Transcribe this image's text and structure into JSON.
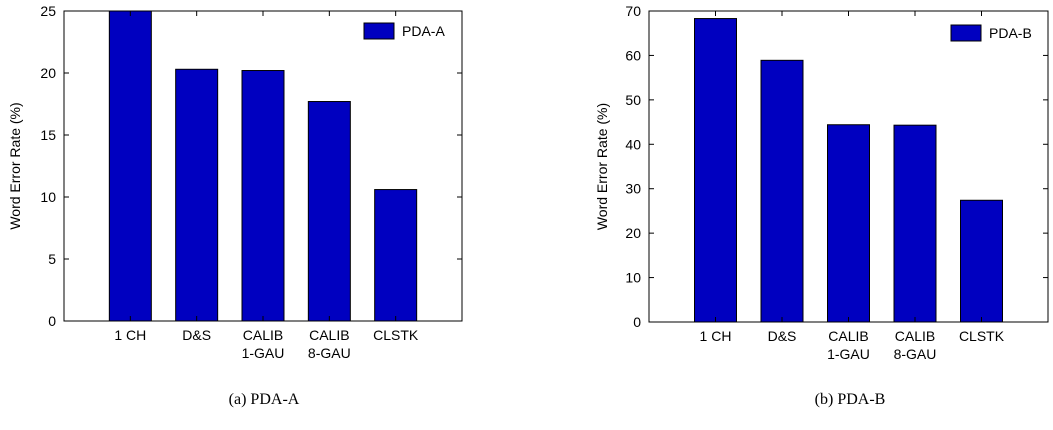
{
  "chart_data": [
    {
      "type": "bar",
      "categories": [
        [
          "1 CH"
        ],
        [
          "D&S"
        ],
        [
          "CALIB",
          "1-GAU"
        ],
        [
          "CALIB",
          "8-GAU"
        ],
        [
          "CLSTK"
        ]
      ],
      "series": [
        {
          "name": "PDA-A",
          "values": [
            25.0,
            20.3,
            20.2,
            17.7,
            10.6
          ]
        }
      ],
      "ylabel": "Word Error Rate (%)",
      "ylim": [
        0,
        25
      ],
      "yticks": [
        0,
        5,
        10,
        15,
        20,
        25
      ],
      "caption": "(a)  PDA-A",
      "legend_position": "top-right",
      "colors": {
        "bar": "#0000c0"
      }
    },
    {
      "type": "bar",
      "categories": [
        [
          "1 CH"
        ],
        [
          "D&S"
        ],
        [
          "CALIB",
          "1-GAU"
        ],
        [
          "CALIB",
          "8-GAU"
        ],
        [
          "CLSTK"
        ]
      ],
      "series": [
        {
          "name": "PDA-B",
          "values": [
            68.3,
            58.9,
            44.4,
            44.3,
            27.4
          ]
        }
      ],
      "ylabel": "Word Error Rate (%)",
      "ylim": [
        0,
        70
      ],
      "yticks": [
        0,
        10,
        20,
        30,
        40,
        50,
        60,
        70
      ],
      "caption": "(b)  PDA-B",
      "legend_position": "top-right",
      "colors": {
        "bar": "#0000c0"
      }
    }
  ]
}
